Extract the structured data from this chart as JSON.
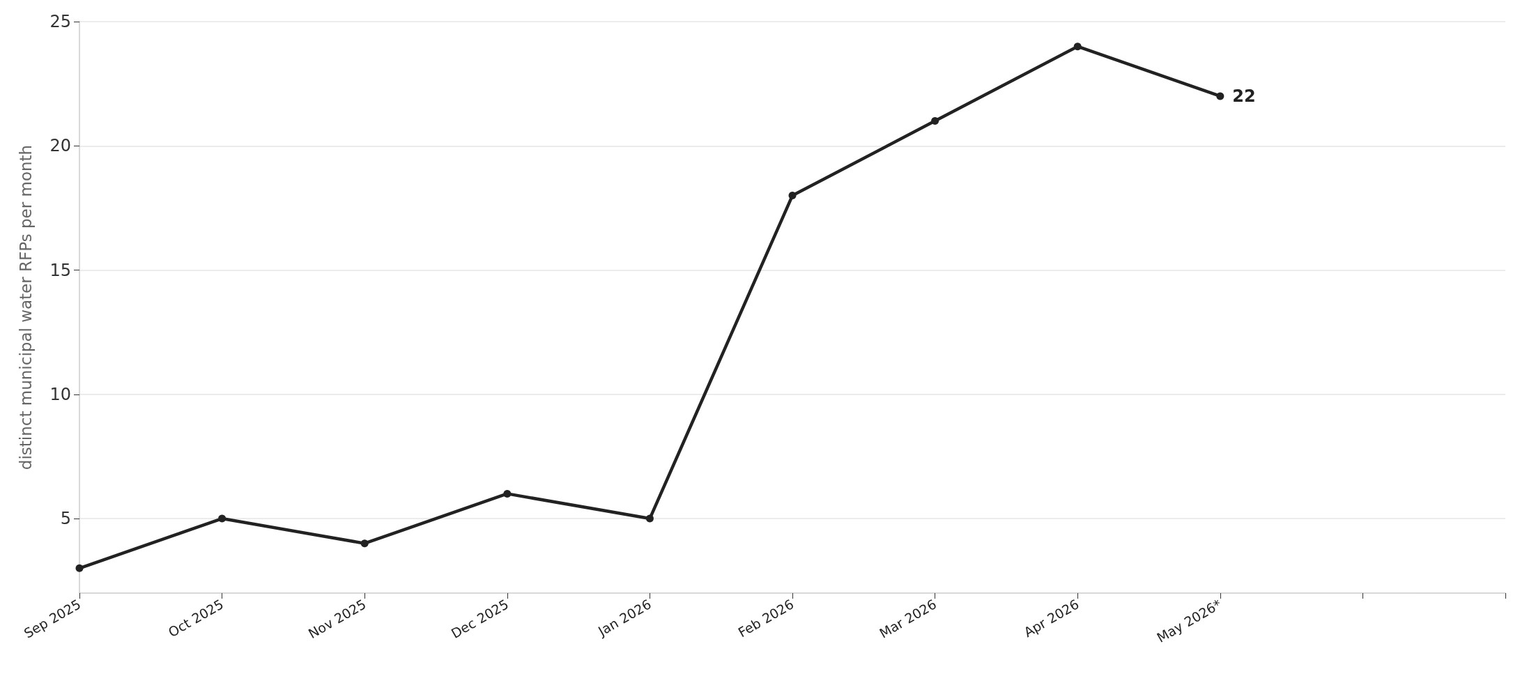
{
  "chart_data": {
    "type": "line",
    "ylabel": "distinct municipal water RFPs per month",
    "categories": [
      "Sep 2025",
      "Oct 2025",
      "Nov 2025",
      "Dec 2025",
      "Jan 2026",
      "Feb 2026",
      "Mar 2026",
      "Apr 2026",
      "May 2026*"
    ],
    "ylim": [
      2,
      25
    ],
    "yticks": [
      5,
      10,
      15,
      20,
      25
    ],
    "series": [
      {
        "color": "#222222",
        "values": [
          3,
          5,
          4,
          6,
          5,
          18,
          21,
          24,
          22
        ],
        "value_labels": [
          null,
          null,
          null,
          null,
          null,
          null,
          null,
          null,
          "22"
        ]
      }
    ],
    "grid": "y",
    "marker": "circle",
    "line_style": "solid"
  }
}
